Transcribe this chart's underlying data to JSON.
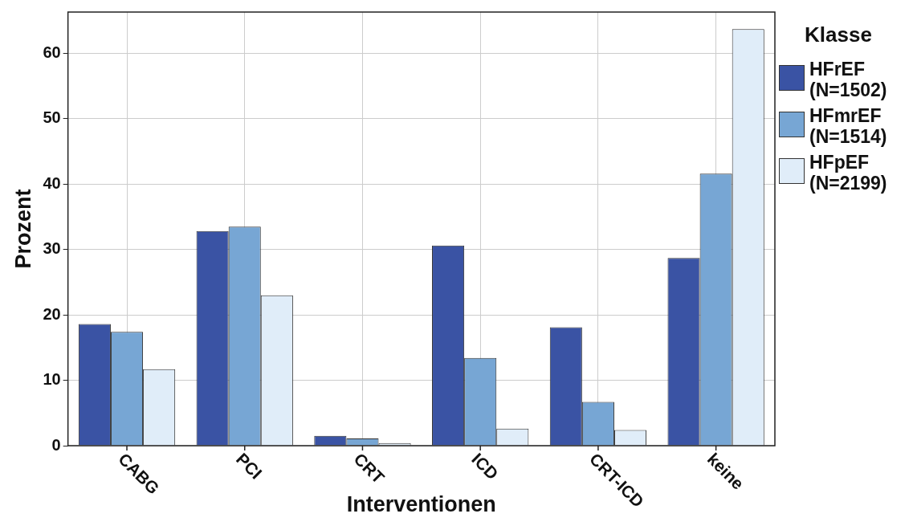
{
  "chart_data": {
    "type": "bar",
    "xlabel": "Interventionen",
    "ylabel": "Prozent",
    "legend_title": "Klasse",
    "categories": [
      "CABG",
      "PCI",
      "CRT",
      "ICD",
      "CRT-ICD",
      "keine"
    ],
    "series": [
      {
        "name": "HFrEF (N=1502)",
        "color": "#3a53a4",
        "values": [
          18.6,
          32.8,
          1.5,
          30.6,
          18.1,
          28.7
        ]
      },
      {
        "name": "HFmrEF (N=1514)",
        "color": "#77a6d4",
        "values": [
          17.4,
          33.5,
          1.1,
          13.4,
          6.7,
          41.6
        ]
      },
      {
        "name": "HFpEF (N=2199)",
        "color": "#e0edf9",
        "values": [
          11.7,
          23.0,
          0.4,
          2.6,
          2.4,
          63.7
        ]
      }
    ],
    "ylim": [
      0,
      66.3
    ],
    "yticks": [
      0,
      10,
      20,
      30,
      40,
      50,
      60
    ],
    "grid": true,
    "legend": "right"
  }
}
